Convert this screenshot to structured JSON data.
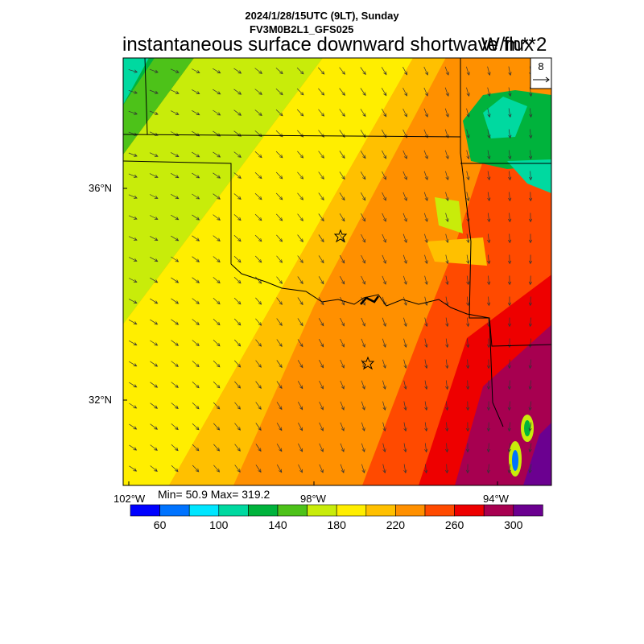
{
  "header": {
    "date_line": "2024/1/28/15UTC (9LT), Sunday",
    "model_line": "FV3M0B2L1_GFS025"
  },
  "map": {
    "title": "instantaneous surface downward shortwave flux",
    "units": "W/m**2",
    "lat_labels": [
      "36°N",
      "32°N"
    ],
    "lon_labels": [
      "102°W",
      "98°W",
      "94°W"
    ],
    "min_max": "Min= 50.9 Max= 319.2",
    "vector_ref": "8",
    "markers": [
      "star",
      "star"
    ]
  },
  "colorbar": {
    "colors": [
      "#0000ff",
      "#0073ff",
      "#00e6ff",
      "#00d9a0",
      "#00b33c",
      "#4dc219",
      "#c8ec0a",
      "#ffee00",
      "#ffc000",
      "#ff9000",
      "#ff4a00",
      "#ee0000",
      "#a70050",
      "#6b0090"
    ],
    "tick_labels": [
      "60",
      "100",
      "140",
      "180",
      "220",
      "260",
      "300"
    ]
  }
}
